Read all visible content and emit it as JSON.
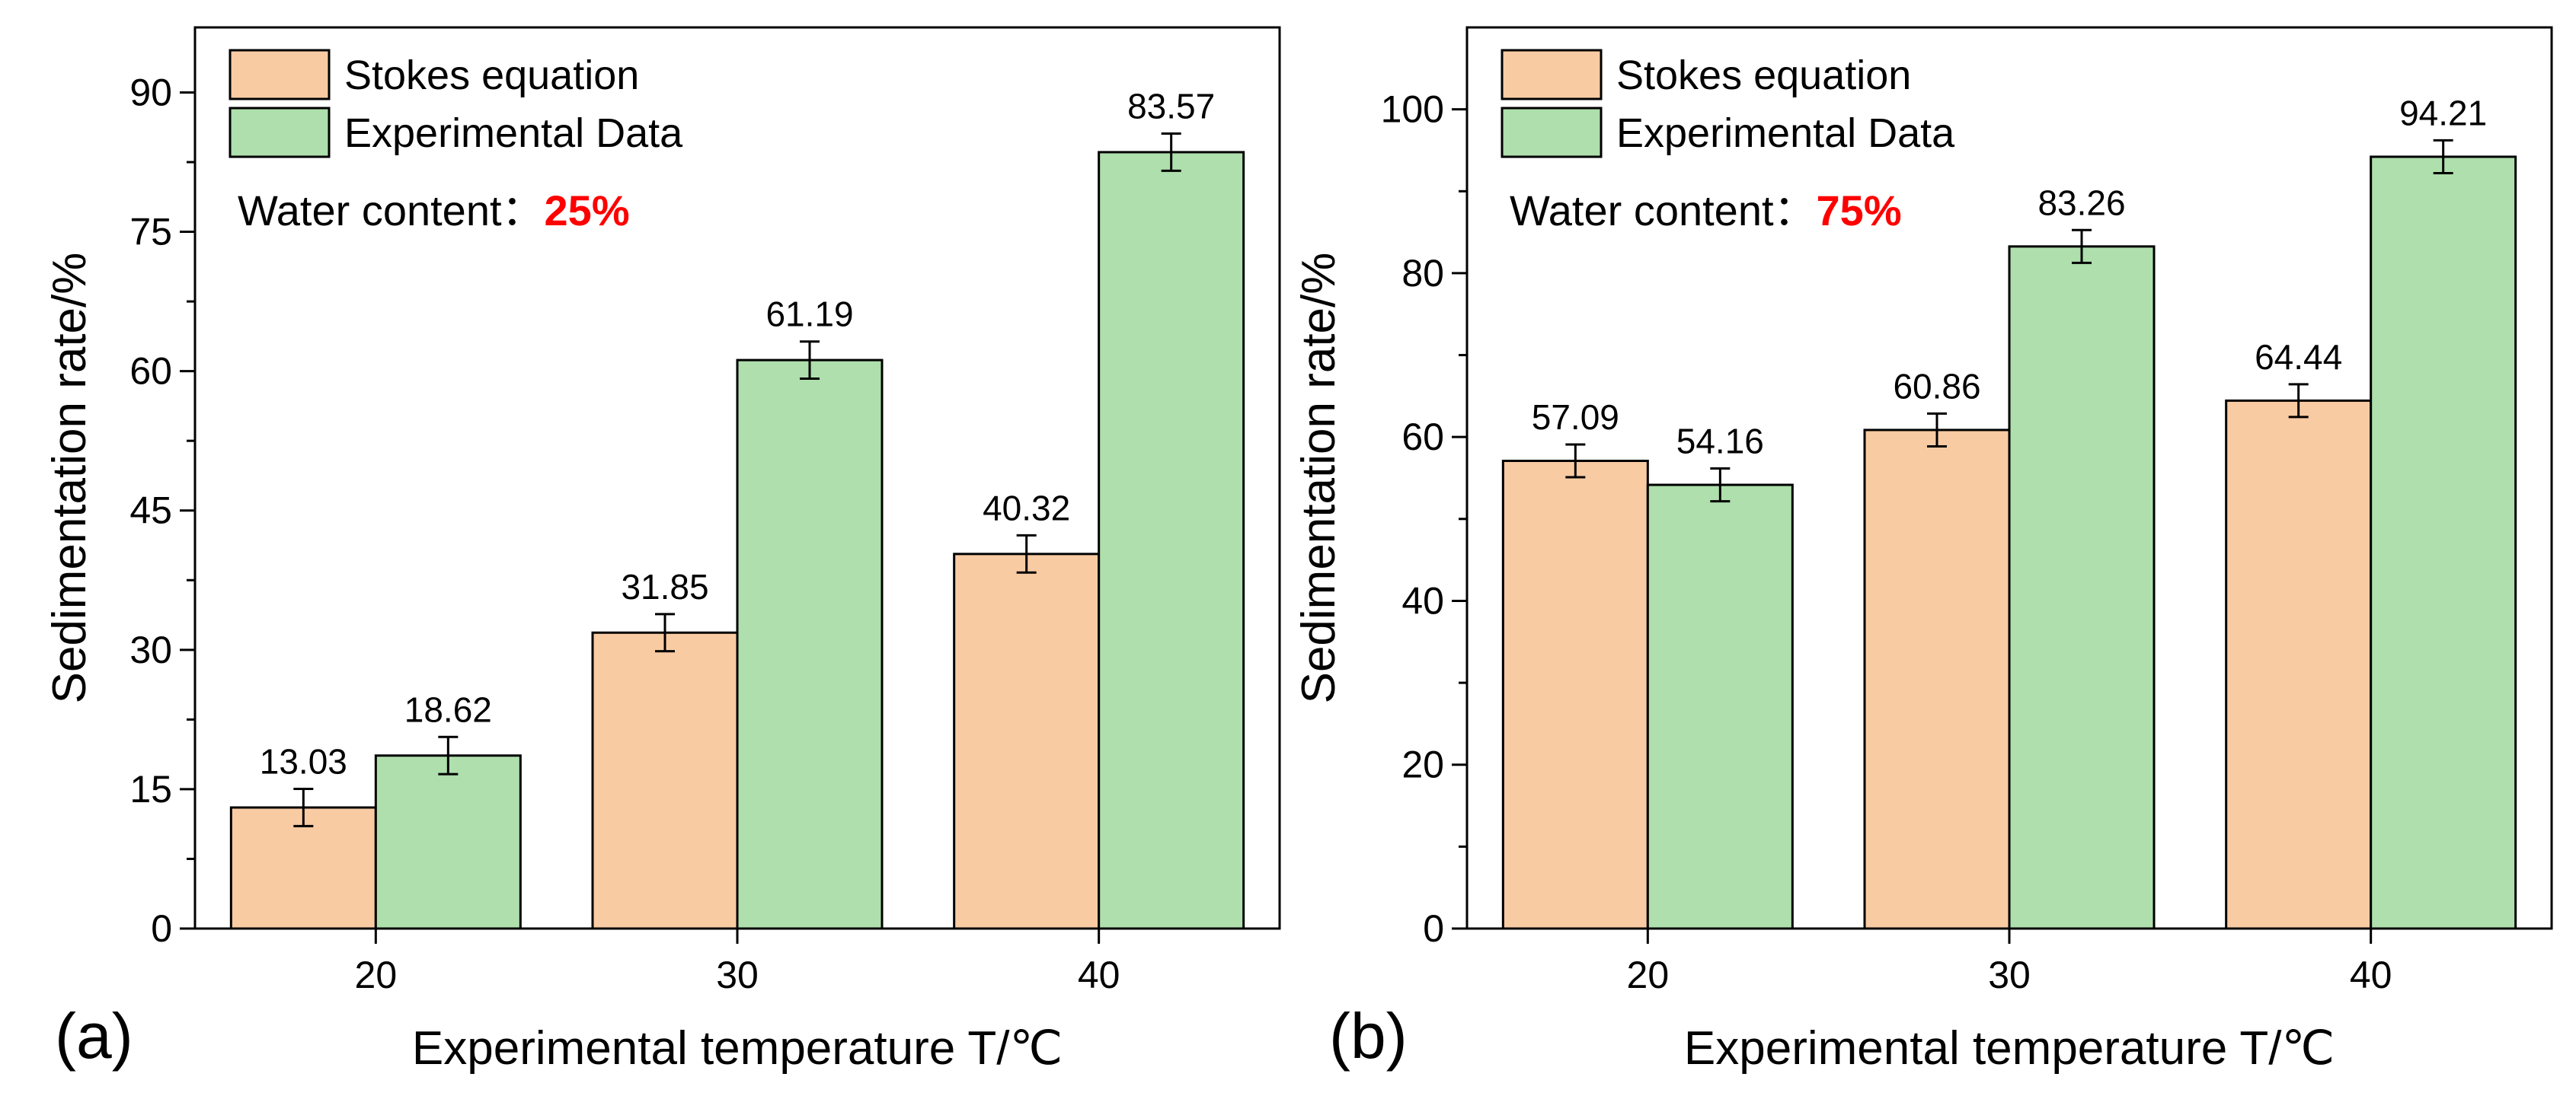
{
  "colors": {
    "stokes": "#F9CBA3",
    "experimental": "#AEDFAC",
    "bar_edge": "#000000",
    "highlight": "#FF0000"
  },
  "chart_data": [
    {
      "panel_label": "(a)",
      "type": "bar",
      "xlabel": "Experimental temperature T/℃",
      "ylabel": "Sedimentation rate/%",
      "categories": [
        "20",
        "30",
        "40"
      ],
      "ylim": [
        0,
        97
      ],
      "yticks": [
        0,
        15,
        30,
        45,
        60,
        75,
        90
      ],
      "series": [
        {
          "name": "Stokes equation",
          "values": [
            13.03,
            31.85,
            40.32
          ],
          "labels": [
            "13.03",
            "31.85",
            "40.32"
          ],
          "errors": [
            2,
            2,
            2
          ]
        },
        {
          "name": "Experimental Data",
          "values": [
            18.62,
            61.19,
            83.57
          ],
          "labels": [
            "18.62",
            "61.19",
            "83.57"
          ],
          "errors": [
            2,
            2,
            2
          ]
        }
      ],
      "annotation": {
        "label": "Water content：",
        "value": "25%"
      }
    },
    {
      "panel_label": "(b)",
      "type": "bar",
      "xlabel": "Experimental temperature T/℃",
      "ylabel": "Sedimentation rate/%",
      "categories": [
        "20",
        "30",
        "40"
      ],
      "ylim": [
        0,
        110
      ],
      "yticks": [
        0,
        20,
        40,
        60,
        80,
        100
      ],
      "series": [
        {
          "name": "Stokes equation",
          "values": [
            57.09,
            60.86,
            64.44
          ],
          "labels": [
            "57.09",
            "60.86",
            "64.44"
          ],
          "errors": [
            2,
            2,
            2
          ]
        },
        {
          "name": "Experimental Data",
          "values": [
            54.16,
            83.26,
            94.21
          ],
          "labels": [
            "54.16",
            "83.26",
            "94.21"
          ],
          "errors": [
            2,
            2,
            2
          ]
        }
      ],
      "annotation": {
        "label": "Water content：",
        "value": "75%"
      }
    }
  ]
}
